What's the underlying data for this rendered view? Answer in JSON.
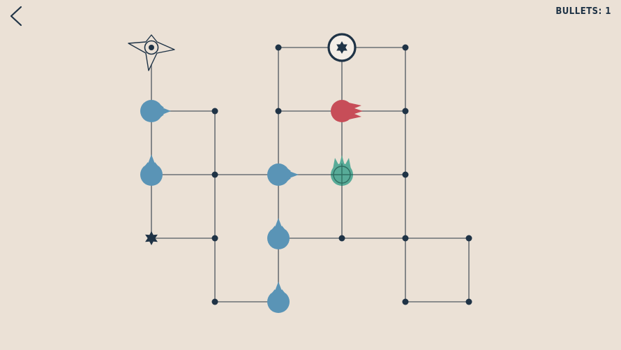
{
  "hud": {
    "back_icon": "chevron-left-icon",
    "bullets_label": "BULLETS:",
    "bullets_count": "1"
  },
  "colors": {
    "background": "#ebe1d6",
    "line": "#6b7075",
    "node": "#1f3346",
    "blue_enemy": "#5a94b6",
    "red_enemy": "#c74d58",
    "green_enemy": "#58ab98",
    "target_ring": "#1f3346"
  },
  "pieces": {
    "player": "shuriken-player-icon",
    "exit_target": "star-target-icon",
    "trap": "spiky-mine-icon",
    "blue_enemies": "blue-blob-enemy-icon",
    "red_enemy": "red-blob-enemy-icon",
    "green_enemy": "green-crosshair-enemy-icon"
  }
}
